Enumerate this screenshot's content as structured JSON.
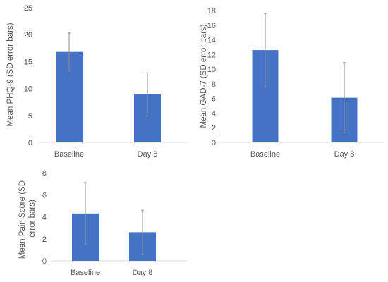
{
  "chart_data": [
    {
      "type": "bar",
      "categories": [
        "Baseline",
        "Day 8"
      ],
      "values": [
        16.8,
        8.9
      ],
      "error_sd": [
        3.5,
        4.0
      ],
      "ylabel": "Mean PHQ-9 (SD error bars)",
      "ylim": [
        0,
        25
      ],
      "yticks": [
        "0",
        "5",
        "10",
        "15",
        "20",
        "25"
      ],
      "grid": false,
      "bar_color": "#4472C4",
      "error_bar_color": "#8c8c8c"
    },
    {
      "type": "bar",
      "categories": [
        "Baseline",
        "Day 8"
      ],
      "values": [
        12.6,
        6.1
      ],
      "error_sd": [
        5.0,
        4.8
      ],
      "ylabel": "Mean GAD-7 (SD error bars)",
      "ylim": [
        0,
        18
      ],
      "yticks": [
        "0",
        "2",
        "4",
        "6",
        "8",
        "10",
        "12",
        "14",
        "16",
        "18"
      ],
      "grid": false,
      "bar_color": "#4472C4",
      "error_bar_color": "#8c8c8c"
    },
    {
      "type": "bar",
      "categories": [
        "Baseline",
        "Day 8"
      ],
      "values": [
        4.3,
        2.6
      ],
      "error_sd": [
        2.8,
        2.0
      ],
      "ylabel": "Mean Pain Score (SD error bars)",
      "ylabel_lines": [
        "Mean Pain Score (SD",
        "error bars)"
      ],
      "ylim": [
        0,
        8
      ],
      "yticks": [
        "0",
        "2",
        "4",
        "6",
        "8"
      ],
      "grid": false,
      "bar_color": "#4472C4",
      "error_bar_color": "#8c8c8c"
    }
  ]
}
